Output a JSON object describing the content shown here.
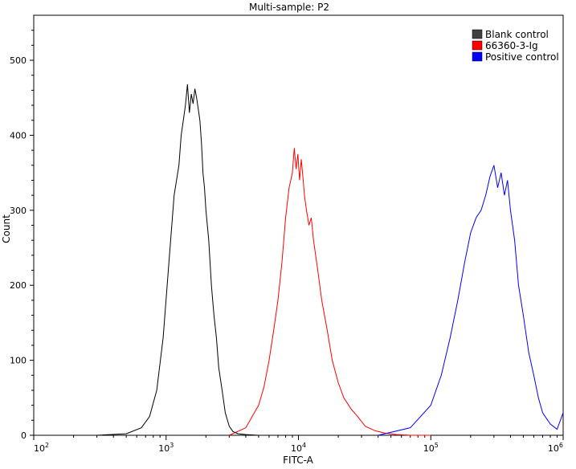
{
  "chart_data": {
    "type": "line",
    "title": "Multi-sample: P2",
    "xlabel": "FITC-A",
    "ylabel": "Count",
    "x_scale": "log",
    "xlim": [
      100,
      1000000
    ],
    "ylim": [
      0,
      560
    ],
    "x_ticks": [
      {
        "value": 100,
        "base": "10",
        "exp": "2"
      },
      {
        "value": 1000,
        "base": "10",
        "exp": "3"
      },
      {
        "value": 10000,
        "base": "10",
        "exp": "4"
      },
      {
        "value": 100000,
        "base": "10",
        "exp": "5"
      },
      {
        "value": 1000000,
        "base": "10",
        "exp": "6"
      }
    ],
    "y_ticks": [
      0,
      100,
      200,
      300,
      400,
      500
    ],
    "grid": false,
    "legend_position": "top-right",
    "series": [
      {
        "name": "Blank control",
        "color": "#000000",
        "swatch_color": "#404040",
        "x": [
          300,
          500,
          650,
          750,
          850,
          950,
          1050,
          1150,
          1250,
          1300,
          1350,
          1400,
          1450,
          1500,
          1550,
          1600,
          1650,
          1700,
          1750,
          1800,
          1850,
          1900,
          1950,
          2000,
          2100,
          2200,
          2300,
          2400,
          2500,
          2650,
          2800,
          3000,
          3200,
          3500,
          4000,
          5000,
          7000,
          10000
        ],
        "y": [
          0,
          2,
          10,
          25,
          60,
          130,
          230,
          320,
          360,
          400,
          420,
          440,
          468,
          430,
          455,
          442,
          462,
          450,
          435,
          420,
          390,
          350,
          330,
          300,
          260,
          200,
          160,
          130,
          90,
          60,
          30,
          12,
          5,
          2,
          1,
          0,
          0,
          0
        ]
      },
      {
        "name": "66360-3-Ig",
        "color": "#ff0000",
        "swatch_color": "#ff0000",
        "x": [
          3000,
          4000,
          5000,
          5500,
          6000,
          6500,
          7000,
          7500,
          8000,
          8500,
          9000,
          9300,
          9600,
          9900,
          10200,
          10500,
          10800,
          11100,
          11500,
          12000,
          12500,
          13000,
          14000,
          15000,
          16500,
          18000,
          20000,
          22000,
          25000,
          28000,
          32000,
          38000,
          45000,
          55000,
          70000,
          100000
        ],
        "y": [
          0,
          10,
          40,
          65,
          100,
          140,
          180,
          230,
          290,
          330,
          350,
          383,
          355,
          375,
          340,
          368,
          345,
          320,
          300,
          280,
          290,
          260,
          220,
          180,
          140,
          100,
          70,
          50,
          35,
          25,
          12,
          6,
          3,
          1,
          0,
          0
        ]
      },
      {
        "name": "Positive control",
        "color": "#0000ff",
        "swatch_color": "#0000ff",
        "x": [
          40000,
          70000,
          100000,
          120000,
          140000,
          160000,
          180000,
          200000,
          220000,
          240000,
          260000,
          280000,
          300000,
          320000,
          340000,
          360000,
          380000,
          400000,
          430000,
          460000,
          500000,
          550000,
          600000,
          650000,
          700000,
          800000,
          900000,
          1000000
        ],
        "y": [
          0,
          10,
          40,
          80,
          130,
          180,
          230,
          270,
          290,
          300,
          320,
          345,
          360,
          330,
          350,
          320,
          340,
          300,
          260,
          200,
          160,
          110,
          80,
          50,
          30,
          15,
          8,
          30
        ]
      }
    ]
  }
}
